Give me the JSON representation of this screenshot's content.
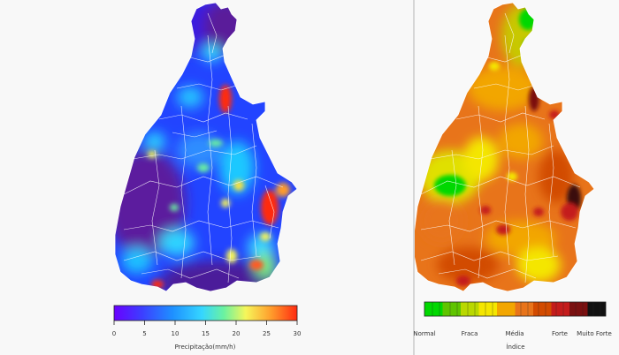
{
  "left_map": {
    "colorbar": {
      "ticks": [
        "0",
        "5",
        "10",
        "15",
        "20",
        "25",
        "30"
      ],
      "label": "Precipitação(mm/h)",
      "colors": [
        "#6a00ff",
        "#3d3dff",
        "#1e90ff",
        "#35d6ff",
        "#6bf2a0",
        "#f6f65a",
        "#ff9b2b",
        "#ff2a10"
      ]
    }
  },
  "right_map": {
    "colorbar": {
      "ticks": [
        "Normal",
        "Fraca",
        "Média",
        "Forte",
        "Muito Forte"
      ],
      "label": "Índice",
      "colors": [
        "#00d800",
        "#5fc400",
        "#b9d800",
        "#f4e600",
        "#f2a600",
        "#e8741a",
        "#d24b00",
        "#c41b1b",
        "#7a1010",
        "#111111"
      ]
    }
  }
}
